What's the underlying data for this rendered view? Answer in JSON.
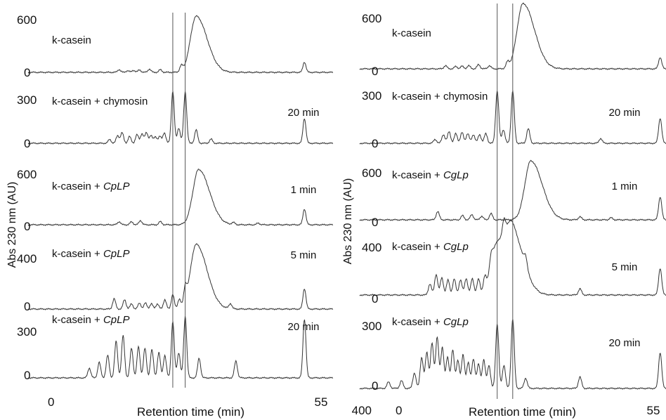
{
  "chart_data": [
    {
      "type": "line",
      "panel": "left",
      "ylabel": "Abs 230 nm (AU)",
      "xlabel": "Retention time (min)",
      "x_ticks": [
        "0",
        "55"
      ],
      "x_range": [
        0,
        55
      ],
      "vertical_reference_lines": [
        25.3,
        27.8
      ],
      "traces": [
        {
          "label": "k-casein",
          "enzyme": "",
          "time": "",
          "y_top": "600",
          "y_zero": "0",
          "ymax": 600,
          "peaks": [
            [
              14.5,
              30
            ],
            [
              16.2,
              18
            ],
            [
              17.4,
              22
            ],
            [
              18.6,
              26
            ],
            [
              20.6,
              35
            ],
            [
              22.8,
              28
            ],
            [
              27.0,
              60
            ],
            [
              30.0,
              600
            ],
            [
              51.8,
              110
            ]
          ]
        },
        {
          "label": "k-casein + chymosin",
          "enzyme": "",
          "time": "20 min",
          "y_top": "300",
          "y_zero": "0",
          "ymax": 300,
          "peaks": [
            [
              12.6,
              20
            ],
            [
              14.2,
              40
            ],
            [
              15.1,
              55
            ],
            [
              16.6,
              35
            ],
            [
              18.1,
              45
            ],
            [
              19.1,
              50
            ],
            [
              20.0,
              55
            ],
            [
              20.9,
              40
            ],
            [
              21.8,
              35
            ],
            [
              22.7,
              35
            ],
            [
              23.6,
              55
            ],
            [
              25.3,
              270
            ],
            [
              26.5,
              80
            ],
            [
              27.8,
              270
            ],
            [
              30.0,
              70
            ],
            [
              33.0,
              22
            ],
            [
              51.8,
              130
            ]
          ]
        },
        {
          "label": "k-casein + ",
          "enzyme": "CpLP",
          "time": "1 min",
          "y_top": "600",
          "y_zero": "0",
          "ymax": 600,
          "peaks": [
            [
              14.5,
              30
            ],
            [
              17.0,
              28
            ],
            [
              18.8,
              40
            ],
            [
              22.8,
              30
            ],
            [
              30.5,
              525
            ],
            [
              37.5,
              20
            ],
            [
              42.5,
              16
            ],
            [
              51.8,
              150
            ]
          ]
        },
        {
          "label": "k-casein + ",
          "enzyme": "CpLP",
          "time": "5 min",
          "y_top": "400",
          "y_zero": "0",
          "ymax": 400,
          "peaks": [
            [
              13.5,
              60
            ],
            [
              15.6,
              55
            ],
            [
              17.0,
              30
            ],
            [
              18.6,
              35
            ],
            [
              19.8,
              35
            ],
            [
              21.0,
              30
            ],
            [
              22.2,
              30
            ],
            [
              23.7,
              55
            ],
            [
              25.3,
              85
            ],
            [
              26.6,
              55
            ],
            [
              27.8,
              90
            ],
            [
              30.0,
              380
            ],
            [
              36.9,
              30
            ],
            [
              51.8,
              120
            ]
          ]
        },
        {
          "label": "k-casein + ",
          "enzyme": "CpLP",
          "time": "20 min",
          "y_top": "300",
          "y_zero": "0",
          "ymax": 300,
          "peaks": [
            [
              8.5,
              35
            ],
            [
              10.5,
              55
            ],
            [
              12.2,
              80
            ],
            [
              13.9,
              130
            ],
            [
              15.3,
              150
            ],
            [
              17.0,
              105
            ],
            [
              18.4,
              110
            ],
            [
              19.7,
              105
            ],
            [
              21.1,
              100
            ],
            [
              22.5,
              90
            ],
            [
              23.7,
              80
            ],
            [
              25.3,
              200
            ],
            [
              26.5,
              90
            ],
            [
              27.8,
              220
            ],
            [
              30.6,
              70
            ],
            [
              38.0,
              60
            ],
            [
              51.8,
              210
            ]
          ]
        }
      ]
    },
    {
      "type": "line",
      "panel": "right",
      "ylabel": "Abs 230 nm (AU)",
      "xlabel": "Retention time (min)",
      "x_ticks": [
        "0",
        "55"
      ],
      "x_range": [
        0,
        55
      ],
      "bottom_left_label": "400",
      "vertical_reference_lines": [
        24.0,
        27.0
      ],
      "traces": [
        {
          "label": "k-casein",
          "enzyme": "",
          "time": "",
          "y_top": "600",
          "y_zero": "0",
          "ymax": 600,
          "peaks": [
            [
              14.0,
              30
            ],
            [
              16.0,
              22
            ],
            [
              17.2,
              25
            ],
            [
              18.5,
              30
            ],
            [
              20.4,
              40
            ],
            [
              22.5,
              30
            ],
            [
              26.0,
              55
            ],
            [
              29.0,
              620
            ],
            [
              55.5,
              110
            ]
          ]
        },
        {
          "label": "k-casein + chymosin",
          "enzyme": "",
          "time": "20 min",
          "y_top": "300",
          "y_zero": "0",
          "ymax": 300,
          "peaks": [
            [
              12.0,
              20
            ],
            [
              13.6,
              45
            ],
            [
              14.7,
              60
            ],
            [
              16.0,
              50
            ],
            [
              17.2,
              55
            ],
            [
              18.3,
              50
            ],
            [
              19.4,
              45
            ],
            [
              20.6,
              45
            ],
            [
              21.8,
              50
            ],
            [
              24.0,
              270
            ],
            [
              25.2,
              70
            ],
            [
              27.0,
              270
            ],
            [
              30.0,
              75
            ],
            [
              44.0,
              25
            ],
            [
              55.5,
              130
            ]
          ]
        },
        {
          "label": "k-casein + ",
          "enzyme": "CgLp",
          "time": "1 min",
          "y_top": "600",
          "y_zero": "0",
          "ymax": 600,
          "peaks": [
            [
              12.5,
              80
            ],
            [
              17.3,
              40
            ],
            [
              19.1,
              50
            ],
            [
              21.0,
              35
            ],
            [
              22.8,
              60
            ],
            [
              30.5,
              560
            ],
            [
              40.0,
              30
            ],
            [
              46.0,
              20
            ],
            [
              55.5,
              220
            ]
          ]
        },
        {
          "label": "k-casein + ",
          "enzyme": "CgLp",
          "time": "5 min",
          "y_top": "400",
          "y_zero": "0",
          "ymax": 400,
          "peaks": [
            [
              11.0,
              70
            ],
            [
              12.2,
              130
            ],
            [
              13.3,
              110
            ],
            [
              14.5,
              95
            ],
            [
              15.7,
              100
            ],
            [
              16.9,
              95
            ],
            [
              18.0,
              105
            ],
            [
              19.2,
              105
            ],
            [
              20.4,
              100
            ],
            [
              21.6,
              85
            ],
            [
              22.8,
              75
            ],
            [
              24.0,
              330
            ],
            [
              25.3,
              100
            ],
            [
              27.0,
              330
            ],
            [
              29.5,
              70
            ],
            [
              40.0,
              40
            ],
            [
              55.5,
              170
            ]
          ]
        },
        {
          "label": "k-casein + ",
          "enzyme": "CgLp",
          "time": "20 min",
          "y_top": "300",
          "y_zero": "0",
          "ymax": 300,
          "peaks": [
            [
              3.0,
              25
            ],
            [
              5.5,
              30
            ],
            [
              8.0,
              60
            ],
            [
              9.4,
              120
            ],
            [
              10.4,
              140
            ],
            [
              11.4,
              175
            ],
            [
              12.4,
              200
            ],
            [
              13.4,
              160
            ],
            [
              14.4,
              120
            ],
            [
              15.4,
              150
            ],
            [
              16.4,
              110
            ],
            [
              17.4,
              130
            ],
            [
              18.4,
              100
            ],
            [
              19.4,
              115
            ],
            [
              20.4,
              95
            ],
            [
              21.4,
              110
            ],
            [
              22.4,
              90
            ],
            [
              24.0,
              250
            ],
            [
              25.3,
              90
            ],
            [
              27.0,
              270
            ],
            [
              29.5,
              40
            ],
            [
              40.0,
              45
            ],
            [
              55.5,
              140
            ]
          ]
        }
      ]
    }
  ]
}
